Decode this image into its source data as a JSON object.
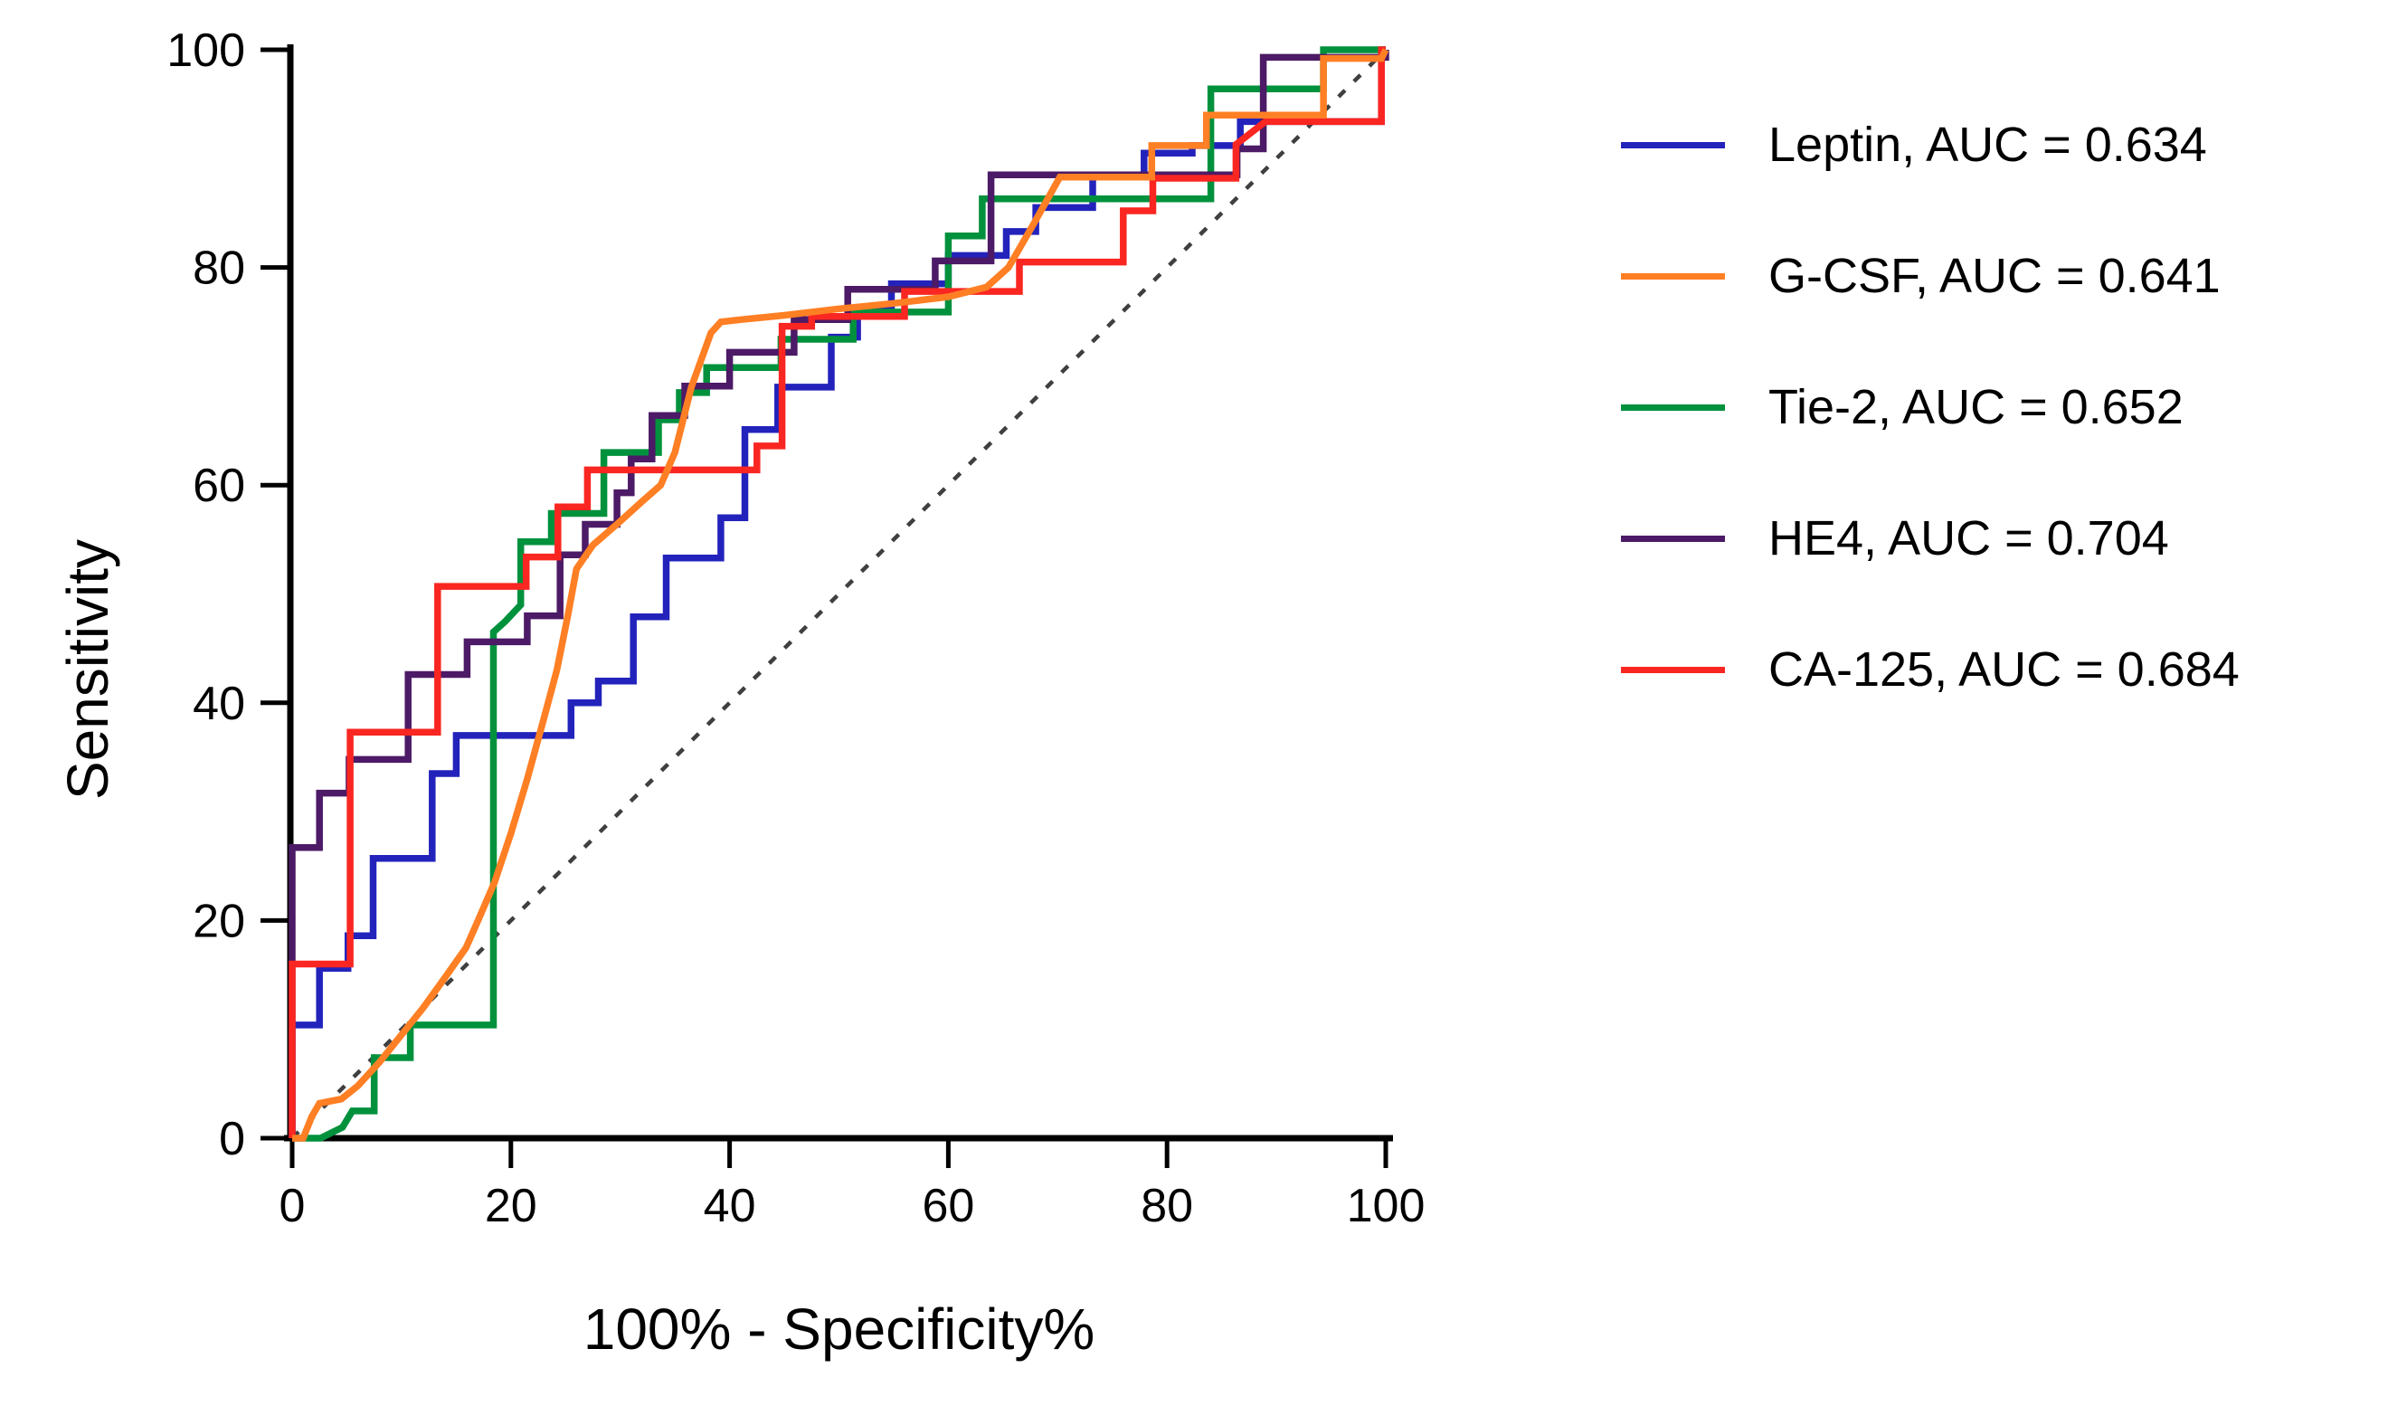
{
  "figure": {
    "background": "#ffffff",
    "axis_color": "#000000",
    "text_color": "#000000"
  },
  "chart_data": {
    "type": "line",
    "title": "",
    "subtitle": "",
    "xlabel": "100% - Specificity%",
    "ylabel": "Sensitivity",
    "xlim": [
      0,
      100
    ],
    "ylim": [
      0,
      100
    ],
    "x_ticks": [
      0,
      20,
      40,
      60,
      80,
      100
    ],
    "y_ticks": [
      0,
      20,
      40,
      60,
      80,
      100
    ],
    "grid": false,
    "legend_position": "right-outside",
    "reference_line": {
      "label": "chance-diagonal",
      "style": "dashed",
      "color": "#3f3f3f",
      "points": [
        [
          0,
          0
        ],
        [
          100,
          100
        ]
      ]
    },
    "series": [
      {
        "name": "Leptin",
        "auc": "0.634",
        "label": "Leptin, AUC = 0.634",
        "color": "#2323bc",
        "points": [
          [
            0,
            0
          ],
          [
            0,
            10.4
          ],
          [
            2.5,
            10.4
          ],
          [
            2.5,
            15.6
          ],
          [
            5.1,
            15.6
          ],
          [
            5.1,
            18.6
          ],
          [
            7.4,
            18.6
          ],
          [
            7.4,
            25.7
          ],
          [
            12.8,
            25.7
          ],
          [
            12.8,
            33.5
          ],
          [
            15,
            33.5
          ],
          [
            15,
            37
          ],
          [
            25.5,
            37
          ],
          [
            25.5,
            40
          ],
          [
            28,
            40
          ],
          [
            28,
            42
          ],
          [
            31.2,
            42
          ],
          [
            31.2,
            47.9
          ],
          [
            34.2,
            47.9
          ],
          [
            34.2,
            53.3
          ],
          [
            39.2,
            53.3
          ],
          [
            39.2,
            57
          ],
          [
            41.4,
            57
          ],
          [
            41.4,
            65.1
          ],
          [
            44.4,
            65.1
          ],
          [
            44.4,
            69
          ],
          [
            49.3,
            69
          ],
          [
            49.3,
            73.6
          ],
          [
            51.7,
            73.6
          ],
          [
            51.7,
            76.1
          ],
          [
            54.8,
            76.1
          ],
          [
            54.8,
            78.5
          ],
          [
            60,
            78.5
          ],
          [
            60,
            81.1
          ],
          [
            65.3,
            81.1
          ],
          [
            65.3,
            83.3
          ],
          [
            68,
            83.3
          ],
          [
            68,
            85.5
          ],
          [
            73.2,
            85.5
          ],
          [
            73.2,
            88.4
          ],
          [
            77.9,
            88.4
          ],
          [
            77.9,
            90.5
          ],
          [
            82.3,
            90.5
          ],
          [
            82.3,
            91.2
          ],
          [
            86.7,
            91.2
          ],
          [
            86.7,
            93.4
          ],
          [
            99.6,
            93.4
          ],
          [
            99.6,
            100
          ],
          [
            100,
            100
          ]
        ]
      },
      {
        "name": "G-CSF",
        "auc": "0.641",
        "label": "G-CSF, AUC = 0.641",
        "color": "#ff7f24",
        "points": [
          [
            0,
            0
          ],
          [
            1,
            0
          ],
          [
            1.8,
            2
          ],
          [
            2.5,
            3.2
          ],
          [
            4.5,
            3.6
          ],
          [
            6,
            4.8
          ],
          [
            8,
            7
          ],
          [
            10,
            9.5
          ],
          [
            12,
            12
          ],
          [
            14,
            14.8
          ],
          [
            15.9,
            17.5
          ],
          [
            17,
            20
          ],
          [
            18.5,
            23.5
          ],
          [
            20,
            28
          ],
          [
            21.5,
            33
          ],
          [
            23,
            38.5
          ],
          [
            24.2,
            43
          ],
          [
            25.2,
            48
          ],
          [
            26,
            52.3
          ],
          [
            27.5,
            54.5
          ],
          [
            29.8,
            56.5
          ],
          [
            32,
            58.5
          ],
          [
            33.7,
            60
          ],
          [
            35,
            63
          ],
          [
            36.5,
            69
          ],
          [
            38.3,
            74
          ],
          [
            39.2,
            75
          ],
          [
            41,
            75.2
          ],
          [
            45,
            75.6
          ],
          [
            50,
            76.2
          ],
          [
            55,
            76.7
          ],
          [
            60,
            77.3
          ],
          [
            63.5,
            78.2
          ],
          [
            65.5,
            80
          ],
          [
            67.8,
            84
          ],
          [
            70.2,
            88.3
          ],
          [
            78.6,
            88.3
          ],
          [
            78.6,
            91.2
          ],
          [
            83.6,
            91.2
          ],
          [
            83.6,
            94
          ],
          [
            94.3,
            94
          ],
          [
            94.3,
            99.2
          ],
          [
            99.6,
            99.2
          ],
          [
            100,
            100
          ]
        ]
      },
      {
        "name": "Tie-2",
        "auc": "0.652",
        "label": "Tie-2, AUC = 0.652",
        "color": "#00913d",
        "points": [
          [
            0,
            0
          ],
          [
            2.6,
            0
          ],
          [
            4.6,
            1
          ],
          [
            5.5,
            2.5
          ],
          [
            7.5,
            2.5
          ],
          [
            7.5,
            7.4
          ],
          [
            10.8,
            7.4
          ],
          [
            10.8,
            10.4
          ],
          [
            18.4,
            10.4
          ],
          [
            18.4,
            46.5
          ],
          [
            19.5,
            47.5
          ],
          [
            20.9,
            49
          ],
          [
            20.9,
            54.8
          ],
          [
            23.7,
            54.8
          ],
          [
            23.7,
            57.4
          ],
          [
            28.5,
            57.4
          ],
          [
            28.5,
            63
          ],
          [
            33.5,
            63
          ],
          [
            33.5,
            66
          ],
          [
            35.4,
            66
          ],
          [
            35.4,
            68.5
          ],
          [
            37.9,
            68.5
          ],
          [
            37.9,
            70.8
          ],
          [
            44.7,
            70.8
          ],
          [
            44.7,
            73.4
          ],
          [
            51.3,
            73.4
          ],
          [
            51.3,
            75.9
          ],
          [
            60,
            75.9
          ],
          [
            60,
            82.9
          ],
          [
            63.1,
            82.9
          ],
          [
            63.1,
            86.3
          ],
          [
            84,
            86.3
          ],
          [
            84,
            96.4
          ],
          [
            94.3,
            96.4
          ],
          [
            94.3,
            100
          ],
          [
            100,
            100
          ]
        ]
      },
      {
        "name": "HE4",
        "auc": "0.704",
        "label": "HE4, AUC = 0.704",
        "color": "#4c1a66",
        "points": [
          [
            0,
            0
          ],
          [
            0,
            26.7
          ],
          [
            2.5,
            26.7
          ],
          [
            2.5,
            31.7
          ],
          [
            5.2,
            31.7
          ],
          [
            5.2,
            34.8
          ],
          [
            10.6,
            34.8
          ],
          [
            10.6,
            42.6
          ],
          [
            16,
            42.6
          ],
          [
            16,
            45.6
          ],
          [
            21.5,
            45.6
          ],
          [
            21.5,
            48
          ],
          [
            24.5,
            48
          ],
          [
            24.5,
            53.6
          ],
          [
            26.8,
            53.6
          ],
          [
            26.8,
            56.4
          ],
          [
            29.7,
            56.4
          ],
          [
            29.7,
            59.3
          ],
          [
            31,
            59.3
          ],
          [
            31,
            62.4
          ],
          [
            32.9,
            62.4
          ],
          [
            32.9,
            66.4
          ],
          [
            35.9,
            66.4
          ],
          [
            35.9,
            69.1
          ],
          [
            40,
            69.1
          ],
          [
            40,
            72.2
          ],
          [
            45.9,
            72.2
          ],
          [
            45.9,
            75.2
          ],
          [
            50.8,
            75.2
          ],
          [
            50.8,
            78
          ],
          [
            58.8,
            78
          ],
          [
            58.8,
            80.6
          ],
          [
            63.9,
            80.6
          ],
          [
            63.9,
            88.5
          ],
          [
            86.4,
            88.5
          ],
          [
            86.4,
            90.9
          ],
          [
            88.8,
            90.9
          ],
          [
            88.8,
            99.3
          ],
          [
            100,
            99.3
          ],
          [
            100,
            100
          ]
        ]
      },
      {
        "name": "CA-125",
        "auc": "0.684",
        "label": "CA-125, AUC = 0.684",
        "color": "#fa2621",
        "points": [
          [
            0,
            0
          ],
          [
            0,
            16
          ],
          [
            5.3,
            16
          ],
          [
            5.3,
            37.3
          ],
          [
            13.3,
            37.3
          ],
          [
            13.3,
            50.7
          ],
          [
            21.4,
            50.7
          ],
          [
            21.4,
            53.4
          ],
          [
            24.3,
            53.4
          ],
          [
            24.3,
            58
          ],
          [
            27,
            58
          ],
          [
            27,
            61.4
          ],
          [
            42.5,
            61.4
          ],
          [
            42.5,
            63.6
          ],
          [
            44.8,
            63.6
          ],
          [
            44.8,
            74.6
          ],
          [
            47.5,
            74.6
          ],
          [
            47.5,
            75.5
          ],
          [
            56,
            75.5
          ],
          [
            56,
            77.8
          ],
          [
            66.5,
            77.8
          ],
          [
            66.5,
            80.5
          ],
          [
            76,
            80.5
          ],
          [
            76,
            85.2
          ],
          [
            78.7,
            85.2
          ],
          [
            78.7,
            88.2
          ],
          [
            86.3,
            88.2
          ],
          [
            86.3,
            91.3
          ],
          [
            89,
            93.4
          ],
          [
            99.6,
            93.4
          ],
          [
            99.6,
            100
          ],
          [
            100,
            100
          ]
        ]
      }
    ]
  }
}
